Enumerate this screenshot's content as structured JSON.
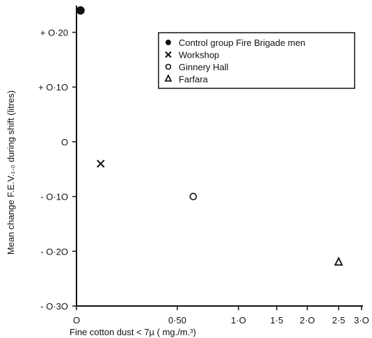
{
  "chart_data": {
    "type": "scatter",
    "title": "",
    "xlabel": "Fine cotton dust < 7µ ( mg./m.³)",
    "ylabel": "Mean change F.E.V.₁.₀ during shift (litres)",
    "xscale": "non-linear (tick spacing compresses at higher values)",
    "xlim": [
      0,
      3.0
    ],
    "ylim": [
      -0.3,
      0.24
    ],
    "x_ticks": [
      {
        "value": 0,
        "label": "O"
      },
      {
        "value": 0.5,
        "label": "0·50"
      },
      {
        "value": 1.0,
        "label": "1·O"
      },
      {
        "value": 1.5,
        "label": "1·5"
      },
      {
        "value": 2.0,
        "label": "2·O"
      },
      {
        "value": 2.5,
        "label": "2·5"
      },
      {
        "value": 3.0,
        "label": "3·O"
      }
    ],
    "y_ticks": [
      {
        "value": 0.2,
        "label": "+ O·20"
      },
      {
        "value": 0.1,
        "label": "+ O·1O"
      },
      {
        "value": 0,
        "label": "O"
      },
      {
        "value": -0.1,
        "label": "- O·1O"
      },
      {
        "value": -0.2,
        "label": "- O·2O"
      },
      {
        "value": -0.3,
        "label": "- O·3O"
      }
    ],
    "grid": false,
    "legend_position": "top-right",
    "series": [
      {
        "name": "Control group  Fire Brigade men",
        "marker": "filled-circle",
        "points": [
          {
            "x": 0.02,
            "y": 0.24
          }
        ]
      },
      {
        "name": "Workshop",
        "marker": "x",
        "points": [
          {
            "x": 0.12,
            "y": -0.04
          }
        ]
      },
      {
        "name": "Ginnery Hall",
        "marker": "open-circle",
        "points": [
          {
            "x": 0.63,
            "y": -0.1
          }
        ]
      },
      {
        "name": "Farfara",
        "marker": "open-triangle",
        "points": [
          {
            "x": 2.5,
            "y": -0.22
          }
        ]
      }
    ]
  }
}
